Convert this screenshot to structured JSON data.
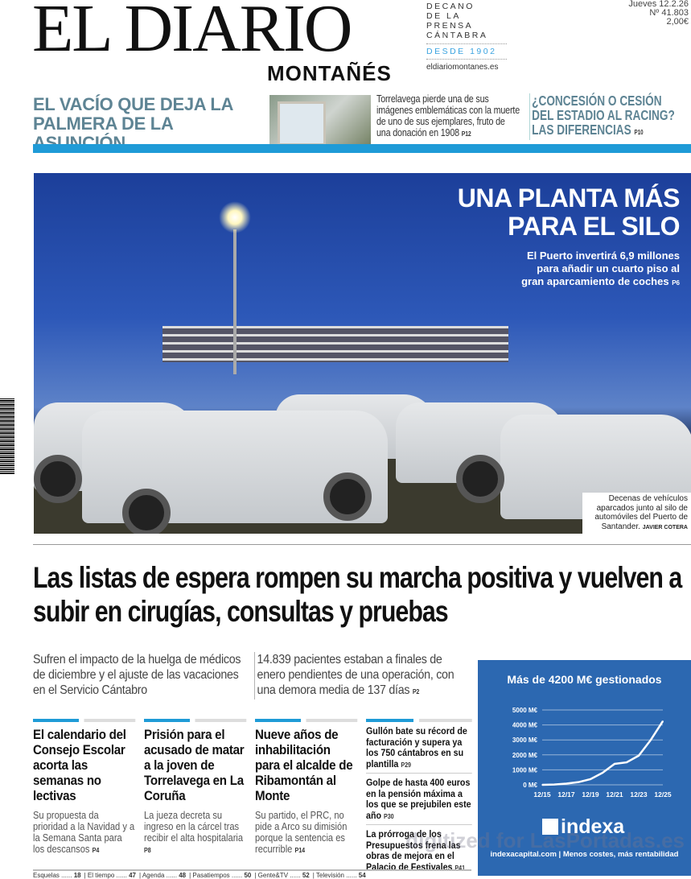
{
  "masthead": {
    "logo": "EL DIARIO",
    "logo_sub": "MONTAÑÉS",
    "tagline": [
      "DECANO",
      "DE LA PRENSA",
      "CÁNTABRA"
    ],
    "since": "DESDE 1902",
    "website": "eldiariomontanes.es",
    "date": "Jueves 12.2.26",
    "issue": "Nº 41.803",
    "price": "2,00€"
  },
  "teasers": {
    "left_headline": "EL VACÍO QUE DEJA LA PALMERA DE LA ASUNCIÓN",
    "middle_text": "Torrelavega pierde una de sus imágenes emblemáticas con la muerte de uno de sus ejemplares, fruto de una donación en 1908",
    "middle_page": "P12",
    "right_headline": "¿CONCESIÓN O CESIÓN DEL ESTADIO AL RACING? LAS DIFERENCIAS",
    "right_page": "P10",
    "accent": "#1f9bd7",
    "headline_color": "#5e8494"
  },
  "photo_story": {
    "title_line1": "UNA PLANTA MÁS",
    "title_line2": "PARA EL SILO",
    "subtitle": "El Puerto invertirá 6,9 millones para añadir un cuarto piso al gran aparcamiento de coches",
    "page": "P6",
    "caption": "Decenas de vehículos aparcados junto al silo de automóviles del Puerto de Santander.",
    "credit": "JAVIER COTERA"
  },
  "lead": {
    "headline": "Las listas de espera rompen su marcha positiva y vuelven a subir en cirugías, consultas y pruebas",
    "sub1": "Sufren el impacto de la huelga de médicos de diciembre y el ajuste de las vacaciones en el Servicio Cántabro",
    "sub2": "14.839 pacientes estaban a finales de enero pendientes de una operación, con una demora media de 137 días",
    "sub2_page": "P2"
  },
  "columns": [
    {
      "headline": "El calendario del Consejo Escolar acorta las semanas no lectivas",
      "body": "Su propuesta da prioridad a la Navidad y a la Semana Santa para los descansos",
      "page": "P4"
    },
    {
      "headline": "Prisión para el acusado de matar a la joven de Torrelavega en La Coruña",
      "body": "La jueza decreta su ingreso en la cárcel tras recibir el alta hospitalaria",
      "page": "P8"
    },
    {
      "headline": "Nueve años de inhabilitación para el alcalde de Ribamontán al Monte",
      "body": "Su partido, el PRC, no pide a Arco su dimisión porque la sentencia es recurrible",
      "page": "P14"
    }
  ],
  "briefs": [
    {
      "text": "Gullón bate su récord de facturación y supera ya los 750 cántabros en su plantilla",
      "page": "P29"
    },
    {
      "text": "Golpe de hasta 400 euros en la pensión máxima a los que se prejubilen este año",
      "page": "P30"
    },
    {
      "text": "La prórroga de los Presupuestos frena las obras de mejora en el Palacio de Festivales",
      "page": "P41"
    }
  ],
  "ad": {
    "title": "Más de 4200 M€ gestionados",
    "brand": "indexa",
    "footer": "indexacapital.com | Menos costes, más rentabilidad",
    "background": "#2c68b1"
  },
  "chart_data": {
    "type": "line",
    "title": "Más de 4200 M€ gestionados",
    "xlabel": "",
    "ylabel": "",
    "x_ticks": [
      "12/15",
      "12/17",
      "12/19",
      "12/21",
      "12/23",
      "12/25"
    ],
    "y_ticks": [
      "0 M€",
      "1000 M€",
      "2000 M€",
      "3000 M€",
      "4000 M€",
      "5000 M€"
    ],
    "ylim": [
      0,
      5000
    ],
    "grid": true,
    "x": [
      "12/15",
      "12/16",
      "12/17",
      "12/18",
      "12/19",
      "12/20",
      "12/21",
      "12/22",
      "12/23",
      "12/24",
      "12/25"
    ],
    "values": [
      0,
      20,
      80,
      180,
      380,
      800,
      1400,
      1500,
      1950,
      3000,
      4250
    ],
    "line_color": "#ffffff"
  },
  "footer": [
    {
      "label": "Esquelas",
      "page": "18"
    },
    {
      "label": "El tiempo",
      "page": "47"
    },
    {
      "label": "Agenda",
      "page": "48"
    },
    {
      "label": "Pasatiempos",
      "page": "50"
    },
    {
      "label": "Gente&TV",
      "page": "52"
    },
    {
      "label": "Televisión",
      "page": "54"
    }
  ],
  "watermark": "digitized for LasPortadas.es"
}
